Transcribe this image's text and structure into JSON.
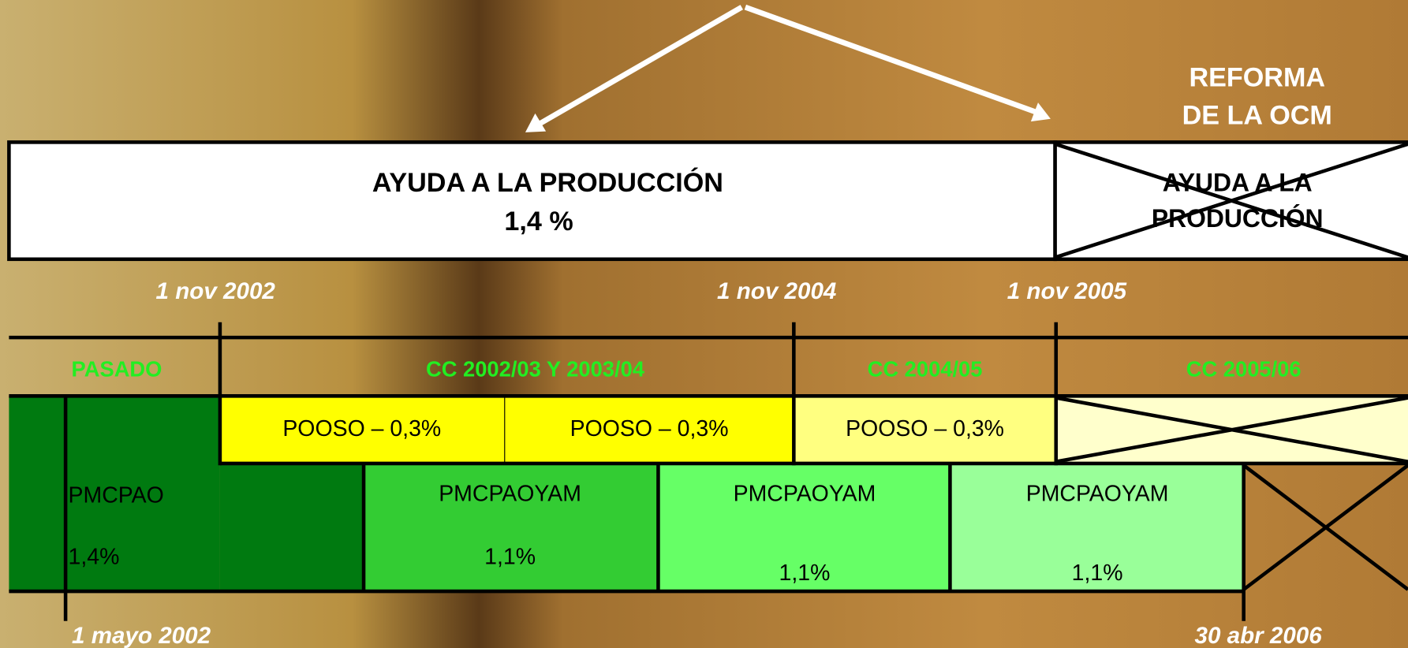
{
  "header": {
    "title_lines": [
      "REFORMA",
      "DE LA OCM"
    ]
  },
  "top_bar": {
    "label": "AYUDA A LA PRODUCCIÓN",
    "value": "1,4  %",
    "crossed_lines": [
      "AYUDA A LA",
      "PRODUCCIÓN"
    ]
  },
  "dates_top": [
    "1 nov 2002",
    "1 nov 2004",
    "1 nov 2005"
  ],
  "periods": [
    "PASADO",
    "CC 2002/03 Y 2003/04",
    "CC 2004/05",
    "CC 2005/06"
  ],
  "pooso": [
    "POOSO – 0,3%",
    "POOSO – 0,3%",
    "POOSO – 0,3%"
  ],
  "aid_blocks": [
    {
      "name": "PMCPAO",
      "value": "1,4%"
    },
    {
      "name": "PMCPAOYAM",
      "value": "1,1%"
    },
    {
      "name": "PMCPAOYAM",
      "value": "1,1%"
    },
    {
      "name": "PMCPAOYAM",
      "value": "1,1%"
    }
  ],
  "dates_bottom": [
    "1 mayo 2002",
    "30 abr 2006"
  ]
}
